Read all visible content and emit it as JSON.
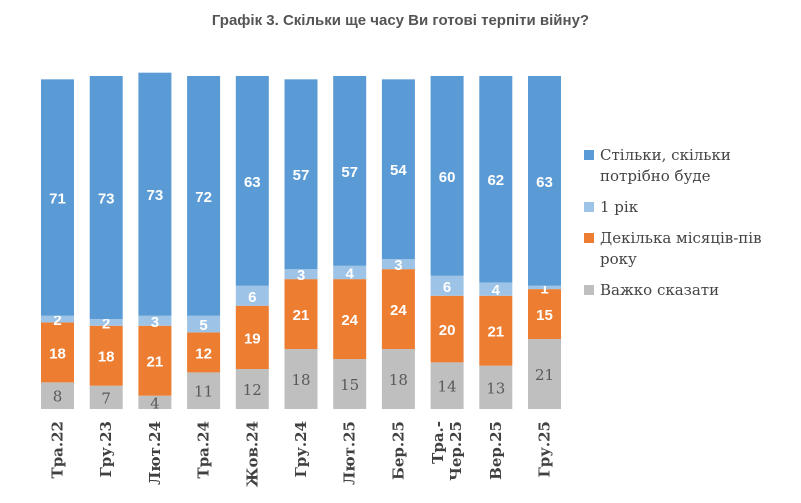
{
  "chart_data": {
    "type": "bar",
    "stacked": true,
    "title": "Графік 3. Скільки ще часу Ви готові терпіти війну?",
    "categories": [
      "Тра.22",
      "Гру.23",
      "Лют.24",
      "Тра.24",
      "Жов.24",
      "Гру.24",
      "Лют.25",
      "Бер.25",
      "Тра.-Чер.25",
      "Вер.25",
      "Гру.25"
    ],
    "series": [
      {
        "name": "Важко сказати",
        "color": "#BFBFBF",
        "values": [
          8,
          7,
          4,
          11,
          12,
          18,
          15,
          18,
          14,
          13,
          21
        ]
      },
      {
        "name": "Декілька місяців-пів року",
        "color": "#ED7D31",
        "values": [
          18,
          18,
          21,
          12,
          19,
          21,
          24,
          24,
          20,
          21,
          15
        ]
      },
      {
        "name": "1 рік",
        "color": "#9DC3E6",
        "values": [
          2,
          2,
          3,
          5,
          6,
          3,
          4,
          3,
          6,
          4,
          1
        ]
      },
      {
        "name": "Стільки, скільки потрібно буде",
        "color": "#5B9BD5",
        "values": [
          71,
          73,
          73,
          72,
          63,
          57,
          57,
          54,
          60,
          62,
          63
        ]
      }
    ],
    "ylim": [
      0,
      100
    ],
    "grid": false,
    "legend_position": "right"
  },
  "legend_order": [
    3,
    2,
    1,
    0
  ]
}
